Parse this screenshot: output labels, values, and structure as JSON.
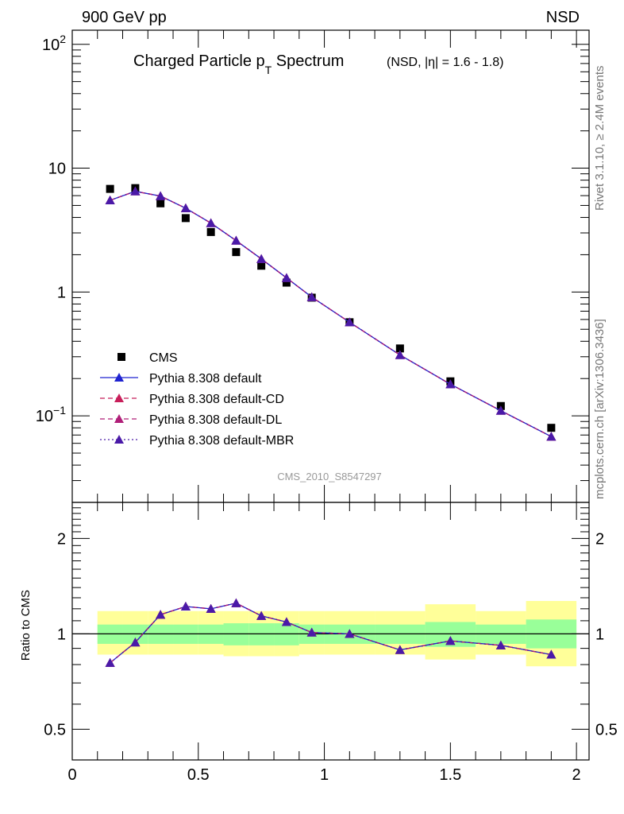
{
  "header": {
    "left": "900 GeV pp",
    "right": "NSD"
  },
  "title": {
    "main": "Charged Particle p",
    "sub": "T",
    "main2": " Spectrum",
    "extra": "(NSD, |η| = 1.6 - 1.8)"
  },
  "side_labels": {
    "rivet": "Rivet 3.1.10, ≥ 2.4M events",
    "mcplots": "mcplots.cern.ch [arXiv:1306.3436]"
  },
  "analysis_id": "CMS_2010_S8547297",
  "ratio_ylabel": "Ratio to CMS",
  "colors": {
    "band_yellow": "#ffff99",
    "band_green": "#99ff99",
    "pythia": "#1f23d0",
    "pythia_cd": "#c81e5a",
    "pythia_dl": "#b01e78",
    "pythia_mbr": "#4a1aa8"
  },
  "chart_data": [
    {
      "type": "scatter",
      "panel": "main",
      "yscale": "log",
      "xlim": [
        0,
        2.05
      ],
      "ylim": [
        0.02,
        130
      ],
      "yticks": [
        0.1,
        1,
        10,
        100
      ],
      "ytick_labels": [
        {
          "base": "10",
          "exp": "−1"
        },
        {
          "base": "1",
          "exp": ""
        },
        {
          "base": "10",
          "exp": ""
        },
        {
          "base": "10",
          "exp": "2"
        }
      ],
      "legend_position": "lower-left",
      "series": [
        {
          "name": "CMS",
          "marker": "square",
          "x": [
            0.15,
            0.25,
            0.35,
            0.45,
            0.55,
            0.65,
            0.75,
            0.85,
            0.95,
            1.1,
            1.3,
            1.5,
            1.7,
            1.9
          ],
          "y": [
            6.8,
            6.9,
            5.2,
            3.95,
            3.05,
            2.1,
            1.63,
            1.19,
            0.9,
            0.57,
            0.35,
            0.19,
            0.12,
            0.08
          ]
        },
        {
          "name": "Pythia 8.308 default",
          "marker": "triangle",
          "style": "solid",
          "x": [
            0.15,
            0.25,
            0.35,
            0.45,
            0.55,
            0.65,
            0.75,
            0.85,
            0.95,
            1.1,
            1.3,
            1.5,
            1.7,
            1.9
          ],
          "y": [
            5.5,
            6.5,
            5.95,
            4.75,
            3.6,
            2.6,
            1.85,
            1.3,
            0.91,
            0.57,
            0.31,
            0.18,
            0.11,
            0.068
          ]
        },
        {
          "name": "Pythia 8.308 default-CD",
          "marker": "triangle",
          "style": "dashed",
          "x": [
            0.15,
            0.25,
            0.35,
            0.45,
            0.55,
            0.65,
            0.75,
            0.85,
            0.95,
            1.1,
            1.3,
            1.5,
            1.7,
            1.9
          ],
          "y": [
            5.5,
            6.5,
            5.95,
            4.75,
            3.6,
            2.6,
            1.85,
            1.3,
            0.91,
            0.57,
            0.31,
            0.18,
            0.11,
            0.068
          ]
        },
        {
          "name": "Pythia 8.308 default-DL",
          "marker": "triangle",
          "style": "dashed",
          "x": [
            0.15,
            0.25,
            0.35,
            0.45,
            0.55,
            0.65,
            0.75,
            0.85,
            0.95,
            1.1,
            1.3,
            1.5,
            1.7,
            1.9
          ],
          "y": [
            5.5,
            6.5,
            5.95,
            4.75,
            3.6,
            2.6,
            1.85,
            1.3,
            0.91,
            0.57,
            0.31,
            0.18,
            0.11,
            0.068
          ]
        },
        {
          "name": "Pythia 8.308 default-MBR",
          "marker": "triangle",
          "style": "dotted",
          "x": [
            0.15,
            0.25,
            0.35,
            0.45,
            0.55,
            0.65,
            0.75,
            0.85,
            0.95,
            1.1,
            1.3,
            1.5,
            1.7,
            1.9
          ],
          "y": [
            5.5,
            6.5,
            5.95,
            4.75,
            3.6,
            2.6,
            1.85,
            1.3,
            0.91,
            0.57,
            0.31,
            0.18,
            0.11,
            0.068
          ]
        }
      ]
    },
    {
      "type": "line",
      "panel": "ratio",
      "yscale": "log",
      "xlim": [
        0,
        2.05
      ],
      "ylim": [
        0.4,
        2.6
      ],
      "yticks": [
        0.5,
        1,
        2
      ],
      "ytick_labels": [
        "0.5",
        "1",
        "2"
      ],
      "xticks": [
        0,
        0.5,
        1,
        1.5,
        2
      ],
      "xtick_labels": [
        "0",
        "0.5",
        "1",
        "1.5",
        "2"
      ],
      "bands": {
        "bin_edges": [
          0.1,
          0.2,
          0.3,
          0.4,
          0.5,
          0.6,
          0.7,
          0.8,
          0.9,
          1.0,
          1.2,
          1.4,
          1.6,
          1.8,
          2.0
        ],
        "yellow": [
          [
            0.86,
            1.18
          ],
          [
            0.86,
            1.18
          ],
          [
            0.86,
            1.18
          ],
          [
            0.86,
            1.18
          ],
          [
            0.86,
            1.18
          ],
          [
            0.85,
            1.18
          ],
          [
            0.85,
            1.18
          ],
          [
            0.85,
            1.18
          ],
          [
            0.86,
            1.18
          ],
          [
            0.86,
            1.18
          ],
          [
            0.86,
            1.18
          ],
          [
            0.83,
            1.24
          ],
          [
            0.86,
            1.18
          ],
          [
            0.79,
            1.27
          ]
        ],
        "green": [
          [
            0.93,
            1.07
          ],
          [
            0.93,
            1.07
          ],
          [
            0.93,
            1.07
          ],
          [
            0.93,
            1.07
          ],
          [
            0.93,
            1.07
          ],
          [
            0.92,
            1.08
          ],
          [
            0.92,
            1.08
          ],
          [
            0.92,
            1.08
          ],
          [
            0.93,
            1.07
          ],
          [
            0.93,
            1.07
          ],
          [
            0.93,
            1.07
          ],
          [
            0.91,
            1.09
          ],
          [
            0.93,
            1.07
          ],
          [
            0.9,
            1.11
          ]
        ]
      },
      "series": [
        {
          "name": "Pythia 8.308 default",
          "x": [
            0.15,
            0.25,
            0.35,
            0.45,
            0.55,
            0.65,
            0.75,
            0.85,
            0.95,
            1.1,
            1.3,
            1.5,
            1.7,
            1.9
          ],
          "y": [
            0.81,
            0.94,
            1.15,
            1.22,
            1.2,
            1.25,
            1.14,
            1.09,
            1.01,
            1.0,
            0.89,
            0.95,
            0.92,
            0.86
          ]
        },
        {
          "name": "Pythia 8.308 default-CD",
          "x": [
            0.15,
            0.25,
            0.35,
            0.45,
            0.55,
            0.65,
            0.75,
            0.85,
            0.95,
            1.1,
            1.3,
            1.5,
            1.7,
            1.9
          ],
          "y": [
            0.81,
            0.94,
            1.15,
            1.22,
            1.2,
            1.25,
            1.14,
            1.09,
            1.01,
            1.0,
            0.89,
            0.95,
            0.92,
            0.86
          ]
        },
        {
          "name": "Pythia 8.308 default-DL",
          "x": [
            0.15,
            0.25,
            0.35,
            0.45,
            0.55,
            0.65,
            0.75,
            0.85,
            0.95,
            1.1,
            1.3,
            1.5,
            1.7,
            1.9
          ],
          "y": [
            0.81,
            0.94,
            1.15,
            1.22,
            1.2,
            1.25,
            1.14,
            1.09,
            1.01,
            1.0,
            0.89,
            0.95,
            0.92,
            0.86
          ]
        },
        {
          "name": "Pythia 8.308 default-MBR",
          "x": [
            0.15,
            0.25,
            0.35,
            0.45,
            0.55,
            0.65,
            0.75,
            0.85,
            0.95,
            1.1,
            1.3,
            1.5,
            1.7,
            1.9
          ],
          "y": [
            0.81,
            0.94,
            1.15,
            1.22,
            1.2,
            1.25,
            1.14,
            1.09,
            1.01,
            1.0,
            0.89,
            0.95,
            0.92,
            0.86
          ]
        }
      ]
    }
  ]
}
